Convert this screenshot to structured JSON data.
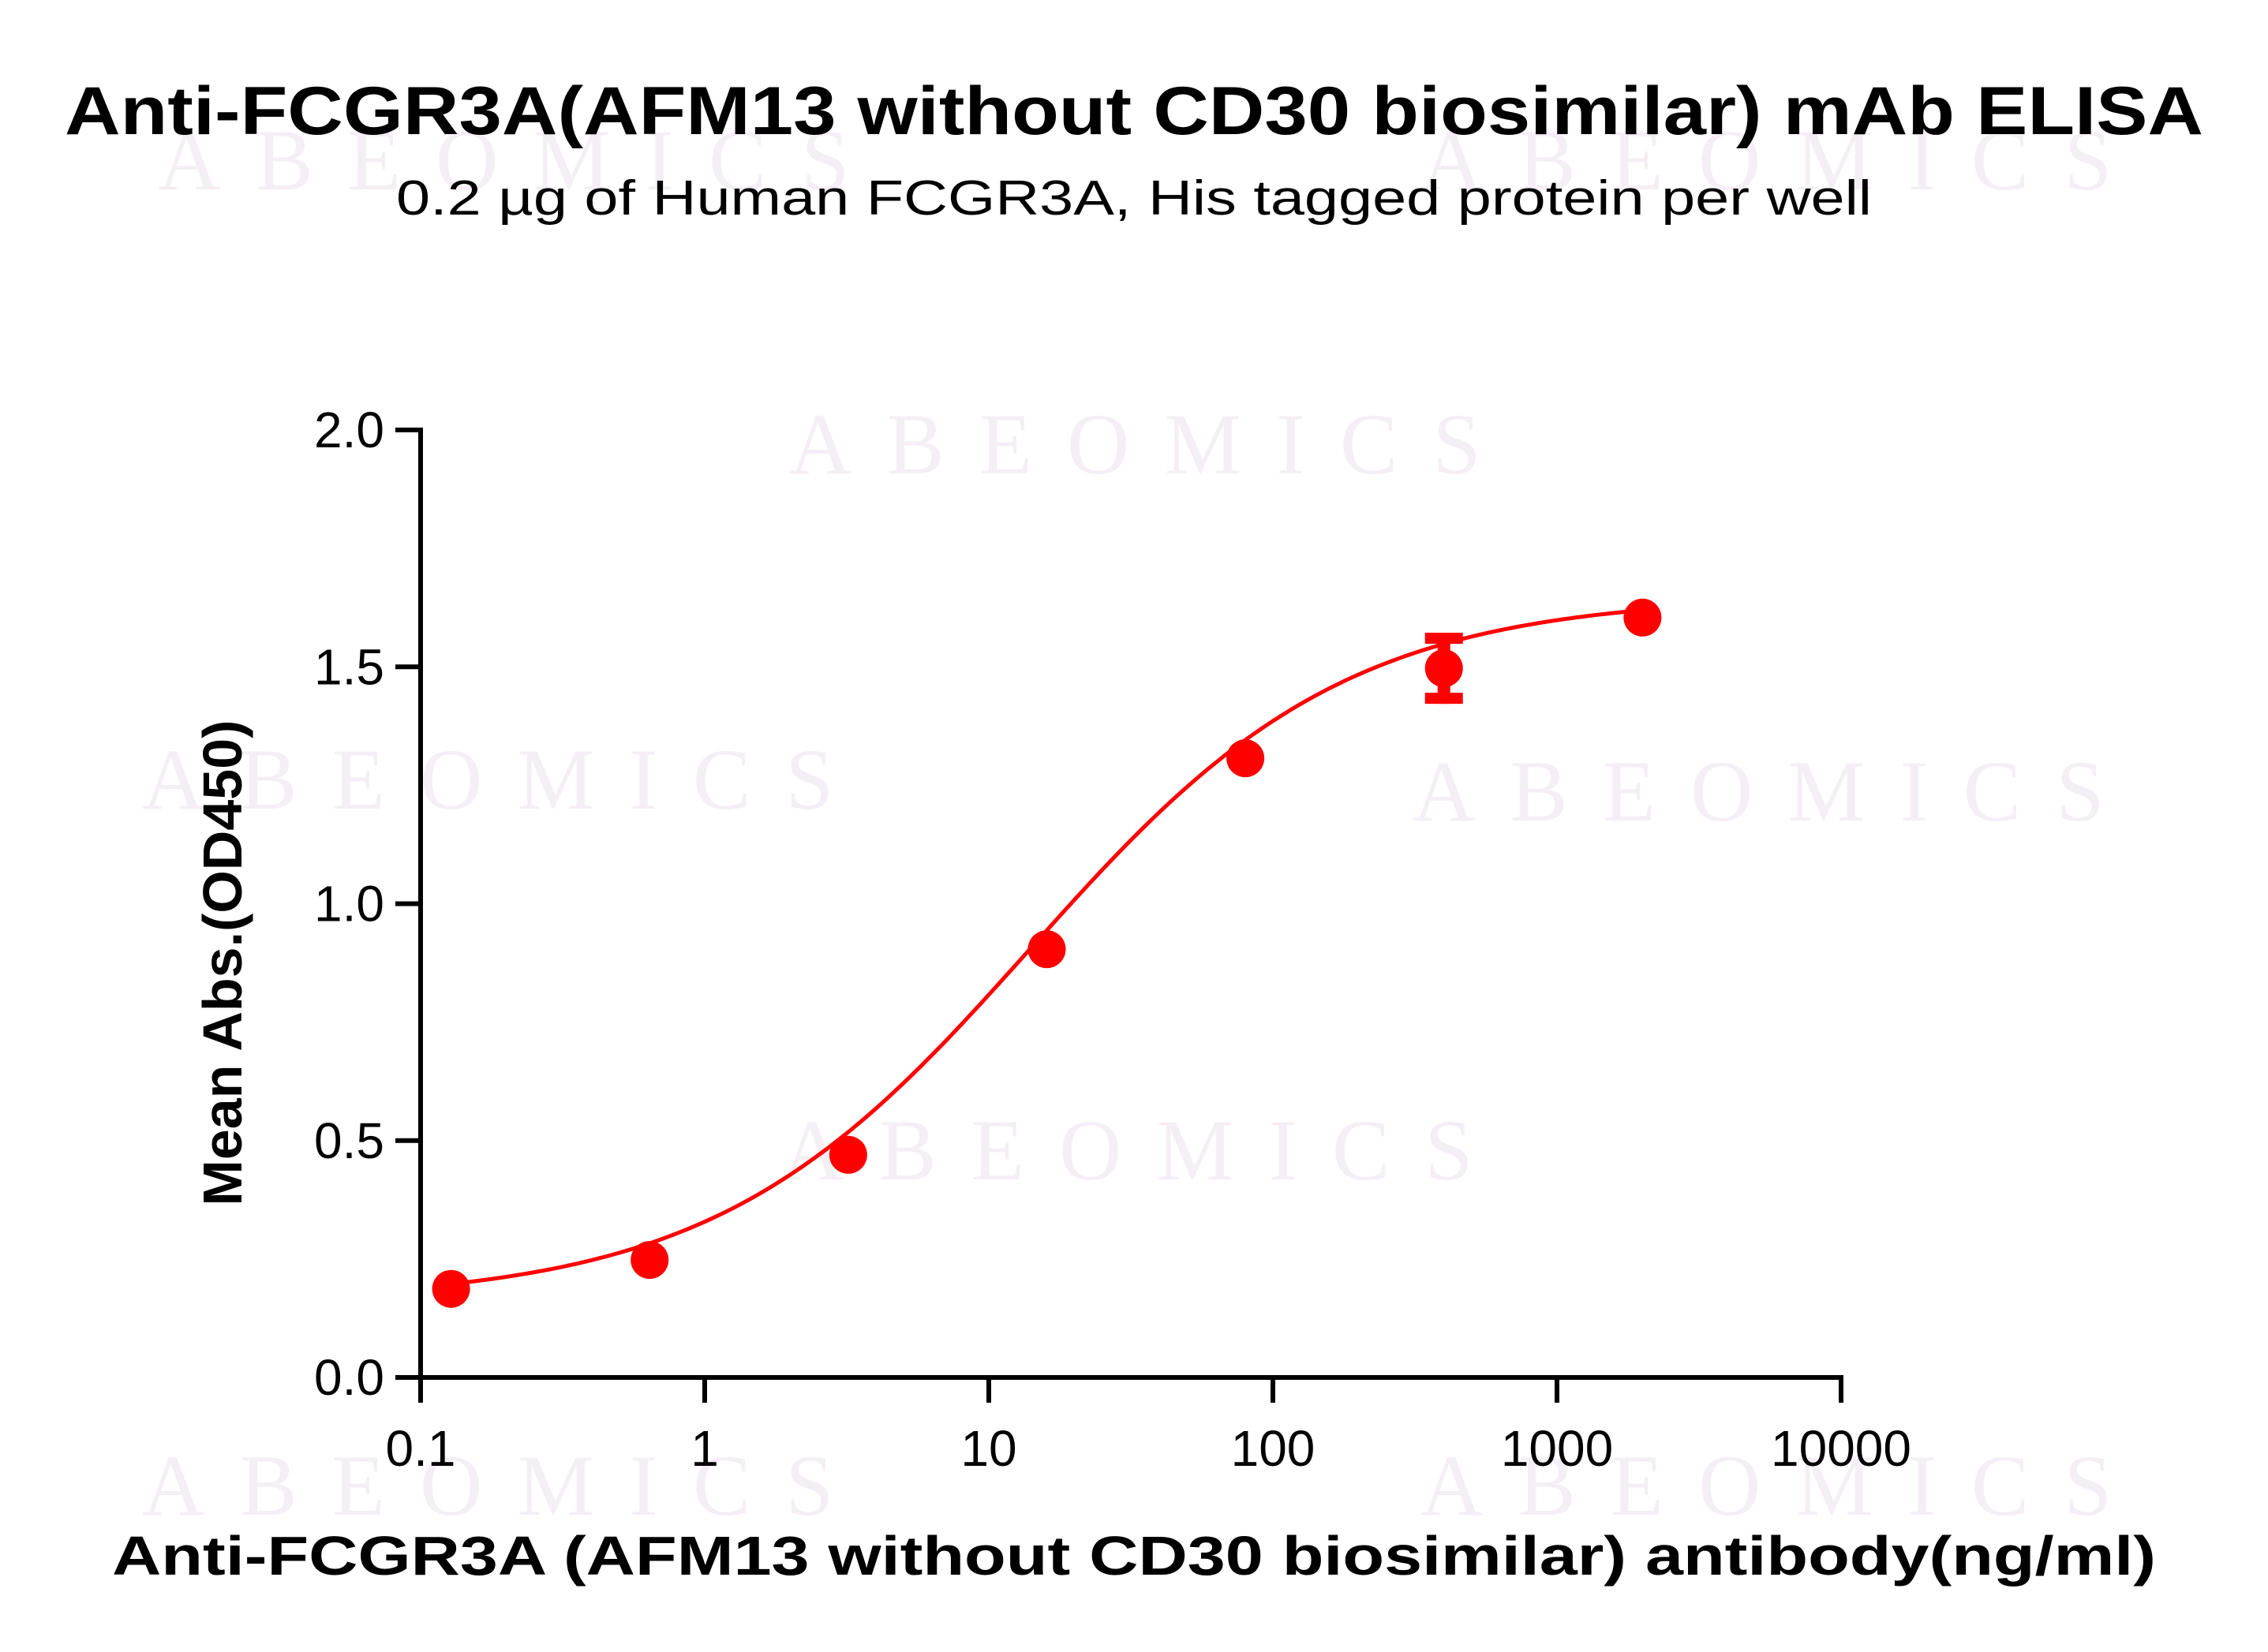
{
  "chart_data": {
    "type": "scatter",
    "title": "Anti-FCGR3A(AFM13 without CD30 biosimilar) mAb ELISA",
    "subtitle": "0.2 µg of Human FCGR3A, His tagged protein per well",
    "xlabel": "Anti-FCGR3A (AFM13 without CD30 biosimilar) antibody(ng/ml)",
    "ylabel": "Mean Abs.(OD450)",
    "xscale": "log",
    "xlim": [
      0.1,
      10000
    ],
    "ylim": [
      0,
      2.0
    ],
    "xticks": [
      0.1,
      1,
      10,
      100,
      1000,
      10000
    ],
    "xtick_labels": [
      "0.1",
      "1",
      "10",
      "100",
      "1000",
      "10000"
    ],
    "yticks": [
      0.0,
      0.5,
      1.0,
      1.5,
      2.0
    ],
    "ytick_labels": [
      "0.0",
      "0.5",
      "1.0",
      "1.5",
      "2.0"
    ],
    "grid": false,
    "legend": "none",
    "series": [
      {
        "name": "Anti-FCGR3A(AFM13 without CD30 biosimilar) mAb",
        "color": "#ff0000",
        "x": [
          0.128,
          0.64,
          3.2,
          16,
          80,
          400,
          2000
        ],
        "y": [
          0.187,
          0.248,
          0.47,
          0.904,
          1.307,
          1.497,
          1.604
        ],
        "error": [
          0,
          0,
          0,
          0,
          0,
          0.075,
          0
        ],
        "fit": "four-parameter logistic"
      }
    ],
    "fit_params": {
      "bottom": 0.16,
      "top": 1.65,
      "ec50": 14,
      "hill": 0.78
    },
    "watermark_text": "ABEOMICS"
  }
}
